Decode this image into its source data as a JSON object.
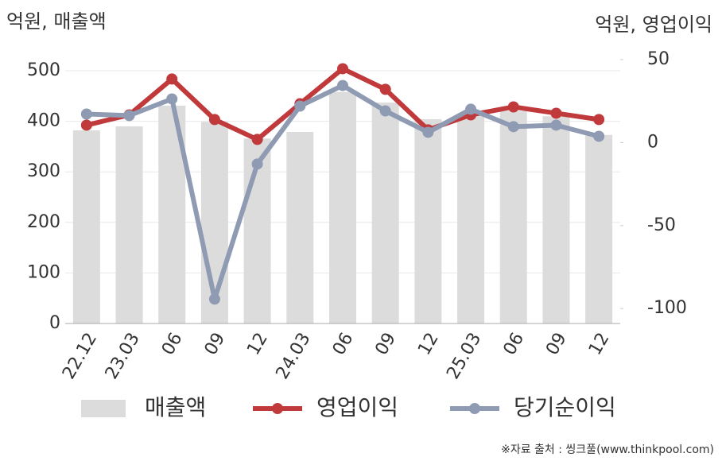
{
  "chart_data": {
    "type": "bar",
    "y_axis_title": "억원, 매출액",
    "y2_axis_title": "억원, 영업이익",
    "source": "※자료 출처 : 씽크풀(www.thinkpool.com)",
    "categories": [
      "22.12",
      "23.03",
      "06",
      "09",
      "12",
      "24.03",
      "06",
      "09",
      "12",
      "25.03",
      "06",
      "09",
      "12"
    ],
    "series": [
      {
        "name": "매출액",
        "type": "bar",
        "axis": "y",
        "color": "#dcdcdc",
        "values": [
          382,
          390,
          431,
          399,
          366,
          379,
          458,
          437,
          404,
          412,
          420,
          410,
          373
        ]
      },
      {
        "name": "영업이익",
        "type": "line",
        "axis": "y2",
        "color": "#c0393b",
        "values": [
          10.5,
          16.7,
          38.3,
          13.9,
          1.9,
          23.4,
          44.5,
          32.1,
          7.7,
          16.7,
          21.5,
          17.7,
          13.9
        ]
      },
      {
        "name": "당기순이익",
        "type": "line",
        "axis": "y2",
        "color": "#8f9ab3",
        "values": [
          17.2,
          16.3,
          26.3,
          -94.3,
          -12.9,
          22.0,
          34.4,
          19.1,
          6.2,
          20.1,
          9.6,
          10.5,
          3.8
        ]
      }
    ],
    "ylim": [
      0,
      522
    ],
    "yticks": [
      0,
      100,
      200,
      300,
      400,
      500
    ],
    "y2lim": [
      -109,
      50
    ],
    "y2ticks": [
      -100,
      -50,
      0,
      50
    ],
    "grid": true
  }
}
